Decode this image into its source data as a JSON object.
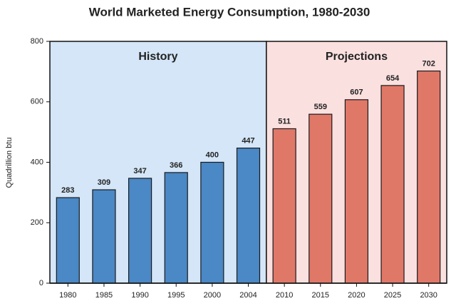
{
  "chart_data": {
    "type": "bar",
    "title": "World Marketed Energy Consumption, 1980-2030",
    "y_label": "Quadrillion btu",
    "categories": [
      "1980",
      "1985",
      "1990",
      "1995",
      "2000",
      "2004",
      "2010",
      "2015",
      "2020",
      "2025",
      "2030"
    ],
    "values": [
      283,
      309,
      347,
      366,
      400,
      447,
      511,
      559,
      607,
      654,
      702
    ],
    "regions": [
      {
        "label": "History",
        "from": "1980",
        "to": "2004",
        "color": "#d4e6f7",
        "bar_color": "#4a88c6"
      },
      {
        "label": "Projections",
        "from": "2010",
        "to": "2030",
        "color": "#fbe0e0",
        "bar_color": "#e07868"
      }
    ],
    "ylim": [
      0,
      800
    ],
    "yticks": [
      0,
      200,
      400,
      600,
      800
    ]
  }
}
